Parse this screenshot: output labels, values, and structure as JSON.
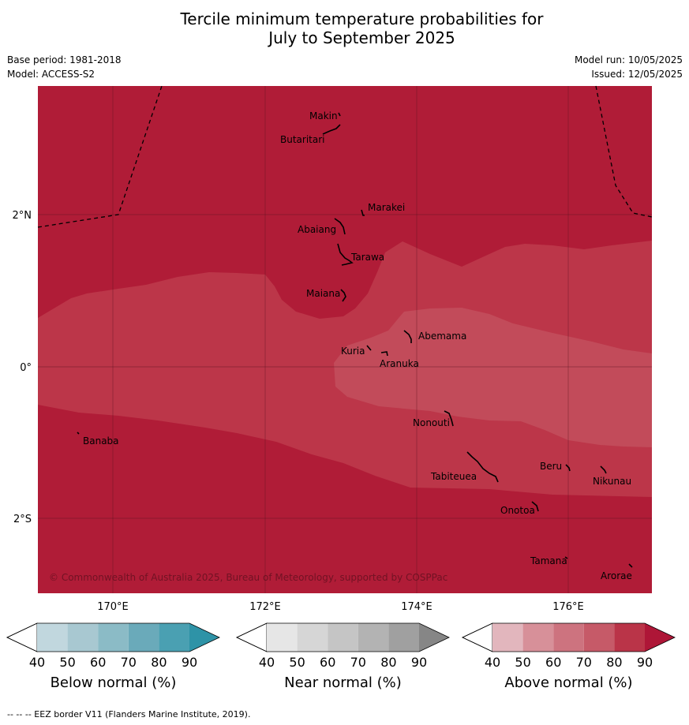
{
  "title": {
    "line1": "Tercile minimum temperature probabilities for",
    "line2": "July to September 2025"
  },
  "meta": {
    "base_period": "Base period: 1981-2018",
    "model": "Model: ACCESS-S2",
    "model_run": "Model run: 10/05/2025",
    "issued": "Issued: 12/05/2025"
  },
  "map": {
    "lat_labels": [
      "2°N",
      "0°",
      "2°S"
    ],
    "lon_labels": [
      "170°E",
      "172°E",
      "174°E",
      "176°E"
    ],
    "copyright": "© Commonwealth of Australia 2025, Bureau of Meteorology, supported by COSPPac",
    "places": [
      {
        "name": "Makin"
      },
      {
        "name": "Butaritari"
      },
      {
        "name": "Marakei"
      },
      {
        "name": "Abaiang"
      },
      {
        "name": "Tarawa"
      },
      {
        "name": "Maiana"
      },
      {
        "name": "Abemama"
      },
      {
        "name": "Kuria"
      },
      {
        "name": "Aranuka"
      },
      {
        "name": "Banaba"
      },
      {
        "name": "Nonouti"
      },
      {
        "name": "Beru"
      },
      {
        "name": "Nikunau"
      },
      {
        "name": "Tabiteuea"
      },
      {
        "name": "Onotoa"
      },
      {
        "name": "Tamana"
      },
      {
        "name": "Arorae"
      }
    ],
    "colors": {
      "above_80_90": "#b01c37",
      "above_70_80": "#bc3649",
      "above_60_70": "#c24b5a"
    }
  },
  "colorbars": [
    {
      "label": "Below normal (%)",
      "ticks": [
        "40",
        "50",
        "60",
        "70",
        "80",
        "90"
      ],
      "colors": [
        "#c1d7de",
        "#a8c8d1",
        "#8bbbc6",
        "#6aaaba",
        "#4aa0b2",
        "#2e93a7"
      ]
    },
    {
      "label": "Near normal (%)",
      "ticks": [
        "40",
        "50",
        "60",
        "70",
        "80",
        "90"
      ],
      "colors": [
        "#e6e6e6",
        "#d6d6d6",
        "#c5c5c5",
        "#b3b3b3",
        "#a0a0a0",
        "#868686"
      ]
    },
    {
      "label": "Above normal (%)",
      "ticks": [
        "40",
        "50",
        "60",
        "70",
        "80",
        "90"
      ],
      "colors": [
        "#e2b6bd",
        "#d79099",
        "#cd737f",
        "#c65a68",
        "#ba3448",
        "#ae1637"
      ]
    }
  ],
  "footer": "--  --  -- EEZ border V11 (Flanders Marine Institute, 2019)."
}
